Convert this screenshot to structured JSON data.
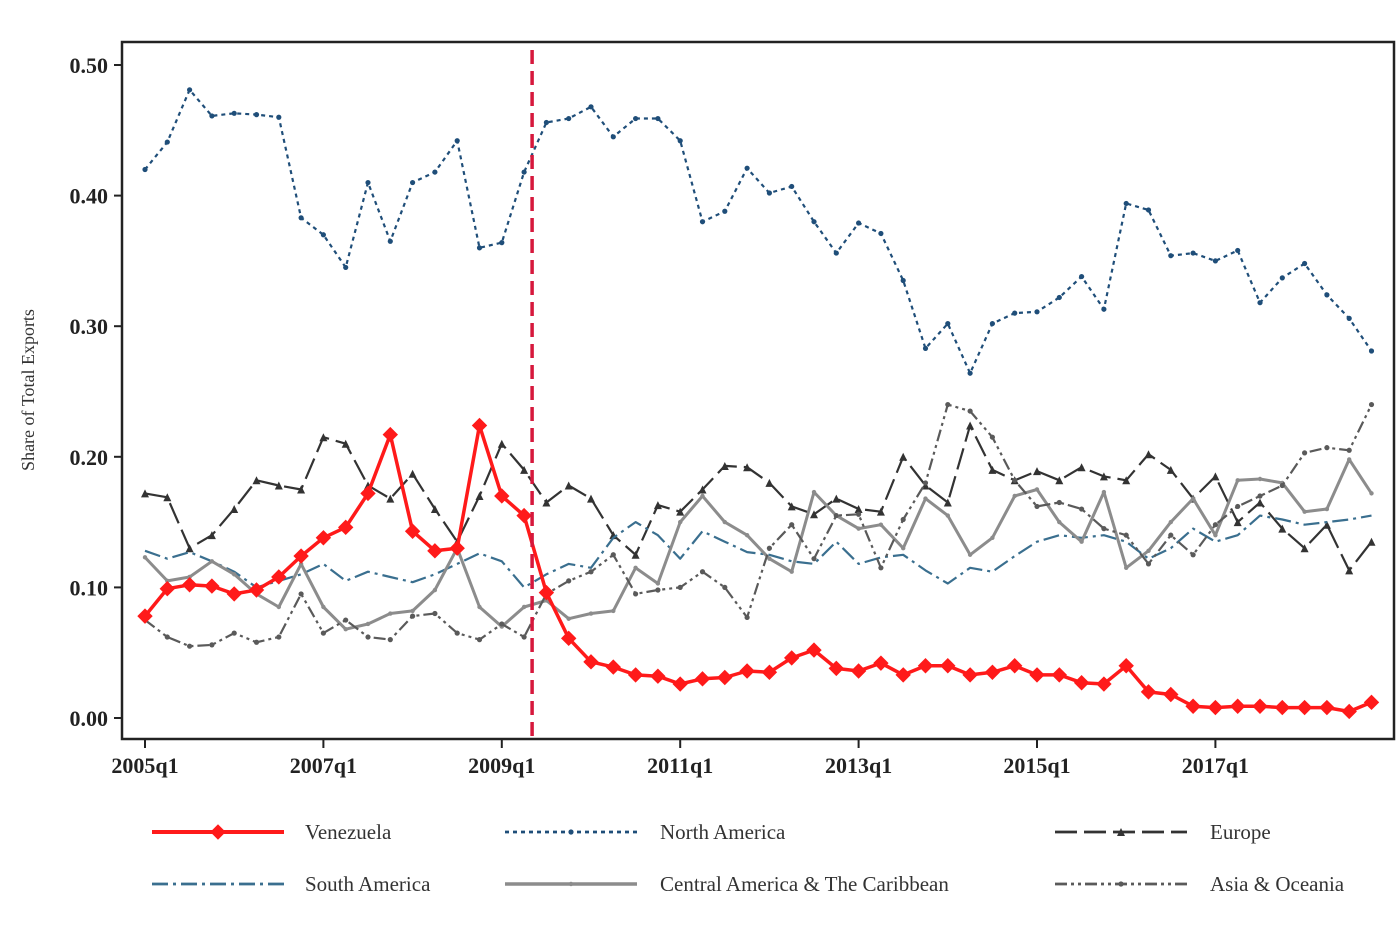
{
  "chart_data": {
    "type": "line",
    "title": "",
    "xlabel": "",
    "ylabel": "Share of Total Exports",
    "ylim": [
      0,
      0.5
    ],
    "yticks": [
      "0.00",
      "0.10",
      "0.20",
      "0.30",
      "0.40",
      "0.50"
    ],
    "xticks": [
      "2005q1",
      "2007q1",
      "2009q1",
      "2011q1",
      "2013q1",
      "2015q1",
      "2017q1"
    ],
    "x_range": [
      "2005q1",
      "2018q4"
    ],
    "grid": false,
    "legend_position": "bottom",
    "vline": {
      "x": "2009q2",
      "color": "#d6183c"
    },
    "x": [
      "2005q1",
      "2005q2",
      "2005q3",
      "2005q4",
      "2006q1",
      "2006q2",
      "2006q3",
      "2006q4",
      "2007q1",
      "2007q2",
      "2007q3",
      "2007q4",
      "2008q1",
      "2008q2",
      "2008q3",
      "2008q4",
      "2009q1",
      "2009q2",
      "2009q3",
      "2009q4",
      "2010q1",
      "2010q2",
      "2010q3",
      "2010q4",
      "2011q1",
      "2011q2",
      "2011q3",
      "2011q4",
      "2012q1",
      "2012q2",
      "2012q3",
      "2012q4",
      "2013q1",
      "2013q2",
      "2013q3",
      "2013q4",
      "2014q1",
      "2014q2",
      "2014q3",
      "2014q4",
      "2015q1",
      "2015q2",
      "2015q3",
      "2015q4",
      "2016q1",
      "2016q2",
      "2016q3",
      "2016q4",
      "2017q1",
      "2017q2",
      "2017q3",
      "2017q4",
      "2018q1",
      "2018q2",
      "2018q3",
      "2018q4"
    ],
    "series": [
      {
        "name": "Venezuela",
        "color": "#ff1a1a",
        "style": "solid-marker",
        "values": [
          0.078,
          0.099,
          0.102,
          0.101,
          0.095,
          0.098,
          0.108,
          0.124,
          0.138,
          0.146,
          0.172,
          0.217,
          0.143,
          0.128,
          0.13,
          0.224,
          0.17,
          0.155,
          0.096,
          0.061,
          0.043,
          0.039,
          0.033,
          0.032,
          0.026,
          0.03,
          0.031,
          0.036,
          0.035,
          0.046,
          0.052,
          0.038,
          0.036,
          0.042,
          0.033,
          0.04,
          0.04,
          0.033,
          0.035,
          0.04,
          0.033,
          0.033,
          0.027,
          0.026,
          0.04,
          0.02,
          0.018,
          0.009,
          0.008,
          0.009,
          0.009,
          0.008,
          0.008,
          0.008,
          0.005,
          0.012
        ]
      },
      {
        "name": "North America",
        "color": "#1f4e79",
        "style": "dotted",
        "values": [
          0.42,
          0.441,
          0.481,
          0.461,
          0.463,
          0.462,
          0.46,
          0.383,
          0.37,
          0.345,
          0.41,
          0.365,
          0.41,
          0.418,
          0.442,
          0.36,
          0.364,
          0.418,
          0.456,
          0.459,
          0.468,
          0.445,
          0.459,
          0.459,
          0.442,
          0.38,
          0.388,
          0.421,
          0.402,
          0.407,
          0.38,
          0.356,
          0.379,
          0.371,
          0.335,
          0.283,
          0.302,
          0.264,
          0.302,
          0.31,
          0.311,
          0.322,
          0.338,
          0.313,
          0.394,
          0.389,
          0.354,
          0.356,
          0.35,
          0.358,
          0.318,
          0.337,
          0.348,
          0.324,
          0.306,
          0.281
        ]
      },
      {
        "name": "Europe",
        "color": "#333333",
        "style": "longdash",
        "values": [
          0.172,
          0.169,
          0.13,
          0.14,
          0.16,
          0.182,
          0.178,
          0.175,
          0.215,
          0.21,
          0.178,
          0.168,
          0.187,
          0.16,
          0.135,
          0.17,
          0.21,
          0.19,
          0.165,
          0.178,
          0.168,
          0.14,
          0.125,
          0.163,
          0.158,
          0.175,
          0.193,
          0.192,
          0.18,
          0.162,
          0.156,
          0.168,
          0.16,
          0.158,
          0.2,
          0.178,
          0.165,
          0.224,
          0.19,
          0.182,
          0.189,
          0.182,
          0.192,
          0.185,
          0.182,
          0.202,
          0.19,
          0.168,
          0.185,
          0.15,
          0.165,
          0.145,
          0.13,
          0.148,
          0.113,
          0.135
        ]
      },
      {
        "name": "South America",
        "color": "#3a6f8f",
        "style": "dashdot",
        "values": [
          0.128,
          0.122,
          0.127,
          0.12,
          0.112,
          0.1,
          0.105,
          0.11,
          0.118,
          0.105,
          0.112,
          0.108,
          0.104,
          0.11,
          0.118,
          0.126,
          0.12,
          0.1,
          0.11,
          0.118,
          0.115,
          0.138,
          0.15,
          0.14,
          0.122,
          0.143,
          0.135,
          0.127,
          0.125,
          0.12,
          0.118,
          0.135,
          0.118,
          0.123,
          0.125,
          0.113,
          0.103,
          0.115,
          0.112,
          0.124,
          0.135,
          0.14,
          0.138,
          0.14,
          0.135,
          0.122,
          0.13,
          0.145,
          0.135,
          0.14,
          0.155,
          0.152,
          0.148,
          0.15,
          0.152,
          0.155
        ]
      },
      {
        "name": "Central America & The Caribbean",
        "color": "#8c8c8c",
        "style": "solid-grey",
        "values": [
          0.123,
          0.105,
          0.108,
          0.12,
          0.11,
          0.095,
          0.085,
          0.118,
          0.085,
          0.068,
          0.072,
          0.08,
          0.082,
          0.098,
          0.13,
          0.085,
          0.07,
          0.085,
          0.09,
          0.076,
          0.08,
          0.082,
          0.115,
          0.103,
          0.15,
          0.17,
          0.15,
          0.14,
          0.122,
          0.112,
          0.173,
          0.155,
          0.145,
          0.148,
          0.13,
          0.168,
          0.155,
          0.125,
          0.138,
          0.17,
          0.175,
          0.15,
          0.135,
          0.173,
          0.115,
          0.128,
          0.15,
          0.168,
          0.14,
          0.182,
          0.183,
          0.18,
          0.158,
          0.16,
          0.198,
          0.172
        ]
      },
      {
        "name": "Asia & Oceania",
        "color": "#5a5a5a",
        "style": "dashdotdot",
        "values": [
          0.075,
          0.062,
          0.055,
          0.056,
          0.065,
          0.058,
          0.062,
          0.095,
          0.065,
          0.075,
          0.062,
          0.06,
          0.078,
          0.08,
          0.065,
          0.06,
          0.072,
          0.062,
          0.095,
          0.105,
          0.112,
          0.125,
          0.095,
          0.098,
          0.1,
          0.112,
          0.1,
          0.077,
          0.13,
          0.148,
          0.122,
          0.155,
          0.156,
          0.115,
          0.152,
          0.18,
          0.24,
          0.235,
          0.215,
          0.182,
          0.162,
          0.165,
          0.16,
          0.145,
          0.14,
          0.118,
          0.14,
          0.125,
          0.148,
          0.162,
          0.17,
          0.178,
          0.203,
          0.207,
          0.205,
          0.24
        ]
      }
    ]
  }
}
